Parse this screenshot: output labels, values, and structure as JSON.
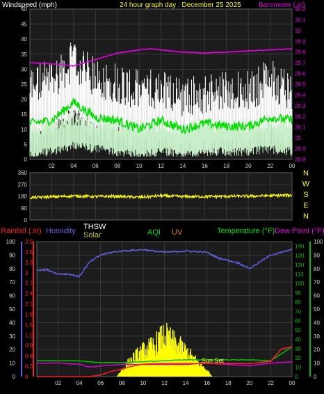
{
  "header": {
    "left_label": "Windspeed (mph)",
    "title": "24 hour graph day : December 25 2025",
    "right_label": "Barometer (.in)"
  },
  "colors": {
    "background": "#000000",
    "panel": "#1c1c1c",
    "grid": "#4a4a4a",
    "axis_text": "#d8d8d8",
    "gust": "#ffffff",
    "wind_avg": "#c8f0c8",
    "wind_10min": "#00e000",
    "barometer": "#e000e0",
    "direction": "#ffff00",
    "humidity": "#6060e0",
    "temperature": "#00c000",
    "dew_point": "#d000d0",
    "rain": "#ff2020",
    "solar": "#ffff00",
    "title": "#ffff00"
  },
  "chart_data": [
    {
      "type": "line",
      "name": "wind-barometer",
      "x_ticks": [
        "02",
        "04",
        "06",
        "08",
        "10",
        "12",
        "14",
        "16",
        "18",
        "20",
        "22",
        "00"
      ],
      "left_axis": {
        "label": "Windspeed (mph)",
        "ylim": [
          0,
          50
        ],
        "ticks": [
          "0",
          "5",
          "10",
          "15",
          "20",
          "25",
          "30",
          "35",
          "40",
          "45",
          "50"
        ]
      },
      "right_axis": {
        "label": "Barometer (.in)",
        "ylim": [
          28.8,
          30.2
        ],
        "ticks": [
          "28.8",
          "28.9",
          "29",
          "29.1",
          "29.2",
          "29.3",
          "29.4",
          "29.5",
          "29.6",
          "29.7",
          "29.8",
          "29.9",
          "30",
          "30.1",
          "30.2"
        ]
      },
      "series": [
        {
          "key": "barometer",
          "hours": [
            0,
            2,
            4,
            6,
            8,
            10,
            11,
            12,
            14,
            16,
            18,
            20,
            22,
            24
          ],
          "values": [
            29.7,
            29.69,
            29.67,
            29.73,
            29.79,
            29.82,
            29.83,
            29.82,
            29.8,
            29.79,
            29.8,
            29.81,
            29.82,
            29.83
          ]
        },
        {
          "key": "wind_10min",
          "hours": [
            0,
            2,
            4,
            6,
            8,
            10,
            12,
            14,
            16,
            18,
            20,
            22,
            24
          ],
          "values": [
            12,
            13,
            19,
            14,
            13,
            10,
            13,
            10,
            12,
            11,
            11,
            14,
            13
          ]
        },
        {
          "key": "wind_avg",
          "hours": [
            0,
            2,
            4,
            6,
            8,
            10,
            12,
            14,
            16,
            18,
            20,
            22,
            24
          ],
          "values": [
            6,
            7,
            9,
            8,
            7,
            6,
            7,
            6,
            7,
            7,
            7,
            8,
            7
          ]
        },
        {
          "key": "gust",
          "hours": [
            0,
            2,
            4,
            6,
            8,
            10,
            12,
            14,
            16,
            18,
            20,
            22,
            24
          ],
          "values": [
            22,
            24,
            30,
            24,
            23,
            20,
            21,
            18,
            19,
            20,
            20,
            24,
            20
          ]
        }
      ]
    },
    {
      "type": "line",
      "name": "wind-direction",
      "x_ticks": [],
      "left_axis": {
        "ylim": [
          0,
          360
        ],
        "ticks": [
          "0",
          "90",
          "180",
          "270",
          "360"
        ]
      },
      "right_labels": [
        "N",
        "W",
        "S",
        "E",
        "N"
      ],
      "series": [
        {
          "key": "direction",
          "hours": [
            0,
            2,
            4,
            6,
            8,
            10,
            12,
            14,
            16,
            18,
            20,
            22,
            24
          ],
          "values": [
            170,
            176,
            183,
            178,
            180,
            172,
            184,
            178,
            178,
            180,
            181,
            185,
            188
          ]
        }
      ]
    },
    {
      "type": "line",
      "name": "temperature-humidity-rain",
      "x_ticks": [
        "02",
        "04",
        "06",
        "08",
        "10",
        "12",
        "14",
        "16",
        "18",
        "20",
        "22",
        "00"
      ],
      "legend": [
        "Rainfall (.in)",
        "Humidity",
        "THSW",
        "Solar",
        "AQI",
        "UV",
        "Temperature (°F)",
        "Dew Point (°F)"
      ],
      "axes": {
        "humidity": {
          "ylim": [
            0,
            100
          ],
          "ticks": [
            "0",
            "10",
            "20",
            "30",
            "40",
            "50",
            "60",
            "70",
            "80",
            "90",
            "100"
          ]
        },
        "rain": {
          "ylim": [
            0,
            3.9
          ],
          "ticks": [
            "0",
            "0.3",
            "0.6",
            "0.9",
            "1.2",
            "1.5",
            "1.8",
            "2.1",
            "2.4",
            "2.7",
            "3",
            "3.3",
            "3.6",
            "3.9"
          ]
        },
        "temperature": {
          "ylim": [
            0,
            145
          ],
          "ticks": [
            "0",
            "10",
            "20",
            "30",
            "40",
            "50",
            "60",
            "70",
            "80",
            "90",
            "100",
            "110",
            "120",
            "130",
            "140"
          ]
        },
        "dew_point": {
          "ylim": [
            0,
            100
          ],
          "ticks": [
            "0",
            "10",
            "20",
            "30",
            "40",
            "50",
            "60",
            "70",
            "80",
            "90",
            "100"
          ]
        }
      },
      "annotation": "Sun Set",
      "series": [
        {
          "key": "humidity",
          "hours": [
            0,
            1,
            2,
            3,
            4,
            4.5,
            5,
            6,
            7,
            8,
            10,
            12,
            14,
            16,
            17,
            18,
            19,
            20,
            21,
            22,
            23,
            24
          ],
          "values": [
            79,
            79,
            76,
            76,
            74,
            80,
            85,
            90,
            92,
            93,
            94,
            92,
            93,
            92,
            88,
            86,
            84,
            80,
            85,
            90,
            92,
            94
          ]
        },
        {
          "key": "temperature",
          "hours": [
            0,
            2,
            4,
            6,
            8,
            10,
            12,
            14,
            16,
            18,
            20,
            22,
            24
          ],
          "values": [
            17,
            17,
            17,
            15,
            15,
            16,
            17,
            18,
            18,
            18,
            18,
            17,
            32
          ]
        },
        {
          "key": "dew_point",
          "hours": [
            0,
            2,
            4,
            5,
            6,
            8,
            10,
            12,
            14,
            16,
            18,
            20,
            22,
            24
          ],
          "values": [
            10,
            10,
            9,
            7,
            8,
            9,
            9,
            9,
            9,
            10,
            9,
            8,
            10,
            11
          ]
        },
        {
          "key": "rain",
          "hours": [
            0,
            5,
            6,
            7,
            8,
            9,
            10,
            11,
            12,
            16,
            18,
            20,
            22,
            23,
            24
          ],
          "values": [
            0,
            0,
            0.05,
            0.15,
            0.22,
            0.3,
            0.36,
            0.38,
            0.38,
            0.38,
            0.38,
            0.38,
            0.44,
            0.8,
            0.86
          ]
        },
        {
          "key": "solar",
          "hours": [
            7.5,
            8,
            9,
            10,
            11,
            11.5,
            12,
            13,
            14,
            15,
            16,
            16.5
          ],
          "values": [
            0,
            5,
            14,
            20,
            24,
            28,
            32,
            26,
            20,
            12,
            5,
            0
          ]
        }
      ]
    }
  ]
}
